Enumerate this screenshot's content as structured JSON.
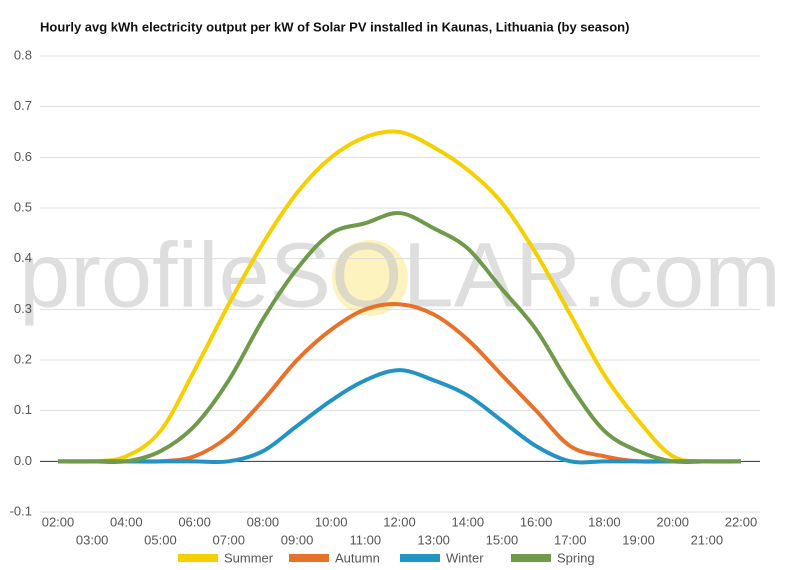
{
  "chart_data": {
    "type": "line",
    "title": "Hourly avg kWh electricity output per kW of Solar PV installed in Kaunas, Lithuania (by season)",
    "watermark": "profileSOLAR.com",
    "categories": [
      "02:00",
      "03:00",
      "04:00",
      "05:00",
      "06:00",
      "07:00",
      "08:00",
      "09:00",
      "10:00",
      "11:00",
      "12:00",
      "13:00",
      "14:00",
      "15:00",
      "16:00",
      "17:00",
      "18:00",
      "19:00",
      "20:00",
      "21:00",
      "22:00"
    ],
    "series": [
      {
        "name": "Summer",
        "color": "#f5d000",
        "values": [
          0,
          0,
          0.01,
          0.06,
          0.18,
          0.31,
          0.43,
          0.53,
          0.6,
          0.64,
          0.65,
          0.62,
          0.575,
          0.51,
          0.41,
          0.29,
          0.17,
          0.08,
          0.01,
          0,
          0
        ]
      },
      {
        "name": "Autumn",
        "color": "#e8712a",
        "values": [
          0,
          0,
          0,
          0,
          0.01,
          0.05,
          0.12,
          0.2,
          0.26,
          0.3,
          0.31,
          0.29,
          0.24,
          0.17,
          0.1,
          0.03,
          0.01,
          0,
          0,
          0,
          0
        ]
      },
      {
        "name": "Winter",
        "color": "#2393c4",
        "values": [
          0,
          0,
          0,
          0,
          0,
          0,
          0.02,
          0.07,
          0.12,
          0.16,
          0.18,
          0.16,
          0.13,
          0.08,
          0.03,
          0,
          0,
          0,
          0,
          0,
          0
        ]
      },
      {
        "name": "Spring",
        "color": "#6f9a4b",
        "values": [
          0,
          0,
          0,
          0.02,
          0.07,
          0.16,
          0.28,
          0.38,
          0.45,
          0.47,
          0.49,
          0.46,
          0.42,
          0.34,
          0.26,
          0.15,
          0.06,
          0.02,
          0,
          0,
          0
        ]
      }
    ],
    "ylim": [
      -0.1,
      0.8
    ],
    "yticks": [
      -0.1,
      {
        "value": 0,
        "label": "0.0"
      },
      0.1,
      0.2,
      0.3,
      0.4,
      0.5,
      0.6,
      0.7,
      0.8
    ],
    "grid": true
  }
}
